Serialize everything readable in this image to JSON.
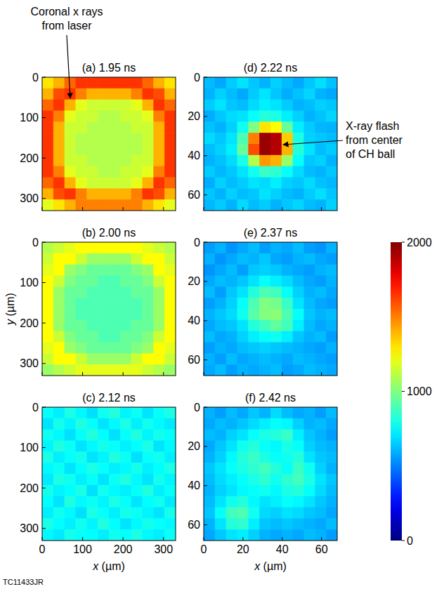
{
  "chart_data": [
    {
      "type": "heatmap",
      "title": "(a) 1.95 ns",
      "xlim": [
        0,
        330
      ],
      "ylim": [
        0,
        330
      ],
      "xticks": [
        0,
        100,
        200,
        300
      ],
      "yticks": [
        0,
        100,
        200,
        300
      ],
      "tick_labels": "y",
      "cells": [
        [
          1300,
          1400,
          1550,
          1650,
          1650,
          1650,
          1650,
          1650,
          1650,
          1550,
          1400,
          1300
        ],
        [
          1400,
          1600,
          1650,
          1500,
          1400,
          1400,
          1400,
          1400,
          1500,
          1650,
          1600,
          1400
        ],
        [
          1550,
          1650,
          1400,
          1200,
          1150,
          1150,
          1150,
          1150,
          1200,
          1400,
          1650,
          1550
        ],
        [
          1650,
          1500,
          1200,
          1150,
          1150,
          1100,
          1100,
          1150,
          1150,
          1200,
          1500,
          1650
        ],
        [
          1650,
          1400,
          1150,
          1150,
          1100,
          1100,
          1100,
          1100,
          1150,
          1150,
          1400,
          1650
        ],
        [
          1650,
          1400,
          1150,
          1100,
          1100,
          1100,
          1100,
          1100,
          1100,
          1150,
          1400,
          1650
        ],
        [
          1650,
          1400,
          1150,
          1100,
          1100,
          1100,
          1100,
          1100,
          1100,
          1150,
          1400,
          1650
        ],
        [
          1650,
          1400,
          1150,
          1150,
          1100,
          1100,
          1100,
          1100,
          1150,
          1150,
          1400,
          1650
        ],
        [
          1650,
          1500,
          1200,
          1150,
          1150,
          1100,
          1100,
          1150,
          1150,
          1200,
          1500,
          1650
        ],
        [
          1550,
          1650,
          1400,
          1200,
          1150,
          1150,
          1150,
          1150,
          1200,
          1400,
          1650,
          1550
        ],
        [
          1400,
          1600,
          1650,
          1500,
          1400,
          1400,
          1400,
          1400,
          1500,
          1650,
          1600,
          1400
        ],
        [
          1200,
          1300,
          1400,
          1500,
          1500,
          1500,
          1500,
          1500,
          1500,
          1400,
          1300,
          1200
        ]
      ]
    },
    {
      "type": "heatmap",
      "title": "(b) 2.00 ns",
      "xlim": [
        0,
        330
      ],
      "ylim": [
        0,
        330
      ],
      "xticks": [
        0,
        100,
        200,
        300
      ],
      "yticks": [
        0,
        100,
        200,
        300
      ],
      "tick_labels": "y",
      "ylabel": "y (µm)",
      "cells": [
        [
          1100,
          1150,
          1200,
          1250,
          1250,
          1250,
          1250,
          1250,
          1250,
          1200,
          1150,
          1100
        ],
        [
          1150,
          1250,
          1250,
          1150,
          1050,
          1050,
          1050,
          1050,
          1150,
          1250,
          1250,
          1150
        ],
        [
          1200,
          1250,
          1050,
          1000,
          950,
          950,
          950,
          950,
          1000,
          1050,
          1250,
          1200
        ],
        [
          1250,
          1150,
          1000,
          950,
          950,
          900,
          900,
          950,
          950,
          1000,
          1150,
          1250
        ],
        [
          1250,
          1050,
          950,
          950,
          900,
          900,
          900,
          900,
          950,
          950,
          1050,
          1250
        ],
        [
          1250,
          1050,
          950,
          900,
          900,
          900,
          900,
          900,
          900,
          950,
          1050,
          1250
        ],
        [
          1250,
          1050,
          950,
          900,
          900,
          900,
          900,
          900,
          900,
          950,
          1050,
          1250
        ],
        [
          1250,
          1050,
          950,
          950,
          900,
          900,
          900,
          900,
          950,
          950,
          1050,
          1250
        ],
        [
          1250,
          1150,
          1000,
          950,
          950,
          900,
          900,
          950,
          950,
          1000,
          1150,
          1250
        ],
        [
          1200,
          1250,
          1050,
          1000,
          950,
          950,
          950,
          950,
          1000,
          1050,
          1250,
          1200
        ],
        [
          1150,
          1250,
          1250,
          1150,
          1050,
          1050,
          1050,
          1050,
          1150,
          1250,
          1250,
          1150
        ],
        [
          1050,
          1100,
          1150,
          1200,
          1200,
          1200,
          1200,
          1200,
          1200,
          1150,
          1100,
          1050
        ]
      ]
    },
    {
      "type": "heatmap",
      "title": "(c) 2.12 ns",
      "xlim": [
        0,
        330
      ],
      "ylim": [
        0,
        330
      ],
      "xticks": [
        0,
        100,
        200,
        300
      ],
      "yticks": [
        0,
        100,
        200,
        300
      ],
      "xlabel": "x (µm)",
      "cells": [
        [
          760,
          720,
          800,
          740,
          690,
          780,
          820,
          730,
          770,
          700,
          760,
          800
        ],
        [
          700,
          790,
          730,
          810,
          760,
          700,
          740,
          800,
          720,
          780,
          740,
          710
        ],
        [
          780,
          740,
          690,
          760,
          820,
          750,
          690,
          760,
          810,
          730,
          790,
          760
        ],
        [
          730,
          810,
          770,
          700,
          740,
          790,
          760,
          720,
          750,
          800,
          700,
          740
        ],
        [
          800,
          720,
          760,
          790,
          700,
          730,
          810,
          770,
          690,
          760,
          780,
          720
        ],
        [
          740,
          770,
          700,
          750,
          800,
          760,
          720,
          740,
          790,
          720,
          750,
          800
        ],
        [
          710,
          800,
          780,
          720,
          760,
          700,
          770,
          810,
          740,
          700,
          790,
          730
        ],
        [
          790,
          730,
          750,
          800,
          690,
          780,
          740,
          720,
          760,
          810,
          720,
          760
        ],
        [
          750,
          700,
          810,
          740,
          770,
          730,
          800,
          760,
          700,
          750,
          780,
          710
        ],
        [
          720,
          780,
          740,
          690,
          800,
          760,
          720,
          790,
          770,
          730,
          700,
          790
        ],
        [
          800,
          750,
          720,
          780,
          730,
          810,
          750,
          700,
          740,
          790,
          760,
          740
        ],
        [
          740,
          710,
          790,
          760,
          750,
          720,
          780,
          760,
          800,
          740,
          720,
          770
        ]
      ]
    },
    {
      "type": "heatmap",
      "title": "(d) 2.22 ns",
      "xlim": [
        0,
        68
      ],
      "ylim": [
        0,
        68
      ],
      "xticks": [
        0,
        20,
        40,
        60
      ],
      "yticks": [
        0,
        20,
        40,
        60
      ],
      "tick_labels": "y",
      "cells": [
        [
          620,
          580,
          650,
          700,
          640,
          600,
          660,
          620,
          580,
          640,
          690,
          630
        ],
        [
          600,
          660,
          620,
          580,
          650,
          700,
          640,
          590,
          630,
          670,
          600,
          580
        ],
        [
          650,
          700,
          640,
          620,
          680,
          720,
          700,
          650,
          600,
          620,
          660,
          640
        ],
        [
          590,
          640,
          680,
          700,
          760,
          820,
          800,
          720,
          660,
          600,
          630,
          670
        ],
        [
          630,
          600,
          660,
          780,
          1000,
          1300,
          1250,
          950,
          720,
          650,
          610,
          600
        ],
        [
          680,
          640,
          700,
          900,
          1500,
          1950,
          1900,
          1350,
          800,
          660,
          640,
          620
        ],
        [
          620,
          660,
          720,
          950,
          1600,
          1950,
          1900,
          1400,
          820,
          700,
          620,
          650
        ],
        [
          600,
          630,
          680,
          800,
          1100,
          1450,
          1400,
          1050,
          760,
          640,
          660,
          600
        ],
        [
          650,
          610,
          640,
          700,
          780,
          860,
          840,
          760,
          680,
          620,
          600,
          640
        ],
        [
          590,
          660,
          620,
          650,
          700,
          680,
          720,
          660,
          640,
          680,
          630,
          610
        ],
        [
          640,
          600,
          660,
          620,
          640,
          700,
          660,
          620,
          600,
          650,
          690,
          640
        ],
        [
          610,
          650,
          600,
          680,
          620,
          650,
          600,
          640,
          670,
          620,
          600,
          660
        ]
      ]
    },
    {
      "type": "heatmap",
      "title": "(e) 2.37 ns",
      "xlim": [
        0,
        68
      ],
      "ylim": [
        0,
        68
      ],
      "xticks": [
        0,
        20,
        40,
        60
      ],
      "yticks": [
        0,
        20,
        40,
        60
      ],
      "tick_labels": "y",
      "cells": [
        [
          560,
          600,
          540,
          580,
          620,
          560,
          600,
          580,
          620,
          560,
          540,
          600
        ],
        [
          600,
          540,
          580,
          620,
          600,
          640,
          580,
          560,
          600,
          620,
          580,
          560
        ],
        [
          540,
          580,
          620,
          560,
          640,
          660,
          640,
          600,
          580,
          560,
          600,
          620
        ],
        [
          580,
          620,
          600,
          640,
          700,
          760,
          720,
          680,
          620,
          580,
          560,
          600
        ],
        [
          620,
          560,
          640,
          700,
          820,
          900,
          880,
          760,
          660,
          600,
          620,
          580
        ],
        [
          560,
          600,
          660,
          760,
          900,
          1000,
          980,
          860,
          700,
          620,
          580,
          560
        ],
        [
          600,
          640,
          680,
          780,
          920,
          1000,
          1020,
          900,
          760,
          640,
          600,
          620
        ],
        [
          580,
          620,
          640,
          700,
          820,
          880,
          940,
          880,
          720,
          620,
          580,
          600
        ],
        [
          620,
          580,
          600,
          660,
          720,
          760,
          780,
          720,
          640,
          600,
          620,
          560
        ],
        [
          560,
          600,
          580,
          620,
          640,
          660,
          640,
          620,
          600,
          580,
          560,
          600
        ],
        [
          600,
          560,
          620,
          580,
          600,
          620,
          600,
          580,
          620,
          600,
          580,
          560
        ],
        [
          580,
          620,
          560,
          600,
          580,
          600,
          620,
          560,
          580,
          620,
          600,
          580
        ]
      ]
    },
    {
      "type": "heatmap",
      "title": "(f) 2.42 ns",
      "xlim": [
        0,
        68
      ],
      "ylim": [
        0,
        68
      ],
      "xticks": [
        0,
        20,
        40,
        60
      ],
      "yticks": [
        0,
        20,
        40,
        60
      ],
      "xlabel": "x (µm)",
      "cells": [
        [
          600,
          560,
          620,
          580,
          640,
          600,
          680,
          620,
          580,
          600,
          560,
          620
        ],
        [
          580,
          620,
          600,
          640,
          680,
          720,
          760,
          740,
          660,
          600,
          620,
          580
        ],
        [
          620,
          600,
          660,
          700,
          760,
          800,
          820,
          860,
          720,
          640,
          600,
          560
        ],
        [
          580,
          640,
          700,
          780,
          820,
          760,
          740,
          800,
          760,
          660,
          620,
          600
        ],
        [
          600,
          660,
          740,
          820,
          860,
          800,
          760,
          780,
          820,
          700,
          640,
          620
        ],
        [
          640,
          700,
          760,
          800,
          840,
          880,
          820,
          760,
          860,
          780,
          660,
          600
        ],
        [
          620,
          680,
          720,
          760,
          800,
          840,
          780,
          840,
          880,
          800,
          700,
          640
        ],
        [
          600,
          660,
          700,
          740,
          760,
          780,
          740,
          800,
          820,
          760,
          680,
          620
        ],
        [
          620,
          700,
          780,
          820,
          740,
          700,
          720,
          760,
          740,
          700,
          640,
          600
        ],
        [
          640,
          760,
          880,
          900,
          780,
          680,
          660,
          700,
          680,
          640,
          620,
          580
        ],
        [
          600,
          700,
          820,
          840,
          720,
          640,
          620,
          640,
          620,
          600,
          580,
          620
        ],
        [
          580,
          640,
          700,
          720,
          660,
          600,
          580,
          600,
          580,
          620,
          600,
          560
        ]
      ]
    }
  ],
  "colorbar": {
    "range": [
      0,
      2000
    ],
    "ticks": [
      0,
      1000,
      2000
    ]
  },
  "annotations": [
    {
      "lines": [
        "Coronal x rays",
        "from laser"
      ]
    },
    {
      "lines": [
        "X-ray flash",
        "from center",
        "of CH ball"
      ]
    }
  ],
  "figure_id": "TC11433JR"
}
